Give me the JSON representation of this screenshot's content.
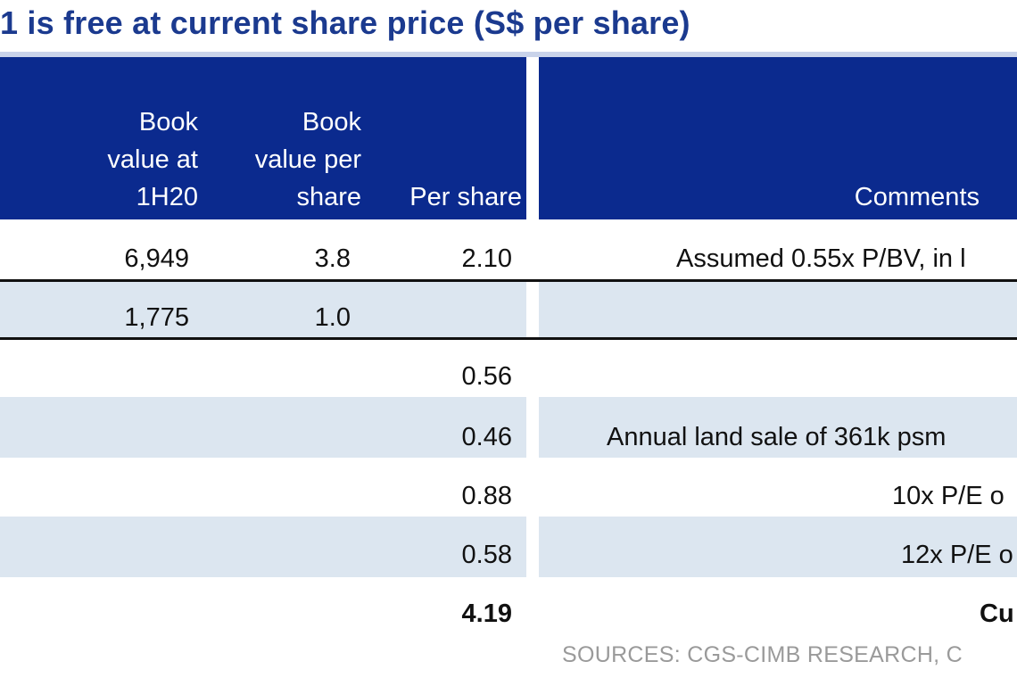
{
  "title": "1 is free at current share price (S$ per share)",
  "table": {
    "headers": {
      "book_value_1h20": [
        "Book",
        "value at",
        "1H20"
      ],
      "book_value_per_share": [
        "Book",
        "value per",
        "share"
      ],
      "per_share": "Per share",
      "comments": "Comments"
    },
    "rows": [
      {
        "book_value": "6,949",
        "bv_per_share": "3.8",
        "per_share": "2.10",
        "comment": "Assumed 0.55x P/BV, in l",
        "bold": false
      },
      {
        "book_value": "1,775",
        "bv_per_share": "1.0",
        "per_share": "",
        "comment": "",
        "bold": false
      },
      {
        "book_value": "",
        "bv_per_share": "",
        "per_share": "0.56",
        "comment": "",
        "bold": false
      },
      {
        "book_value": "",
        "bv_per_share": "",
        "per_share": "0.46",
        "comment": "Annual land sale of 361k psm",
        "bold": false
      },
      {
        "book_value": "",
        "bv_per_share": "",
        "per_share": "0.88",
        "comment": "10x P/E o",
        "bold": false
      },
      {
        "book_value": "",
        "bv_per_share": "",
        "per_share": "0.58",
        "comment": "12x P/E o",
        "bold": false
      },
      {
        "book_value": "",
        "bv_per_share": "",
        "per_share": "4.19",
        "comment": "Cu",
        "bold": true
      }
    ]
  },
  "source": "SOURCES: CGS-CIMB RESEARCH, C",
  "colors": {
    "title": "#1b3a8f",
    "header_band": "#0b2a8e",
    "row_shade": "#dce6f0",
    "source_text": "#9a9a9a"
  }
}
